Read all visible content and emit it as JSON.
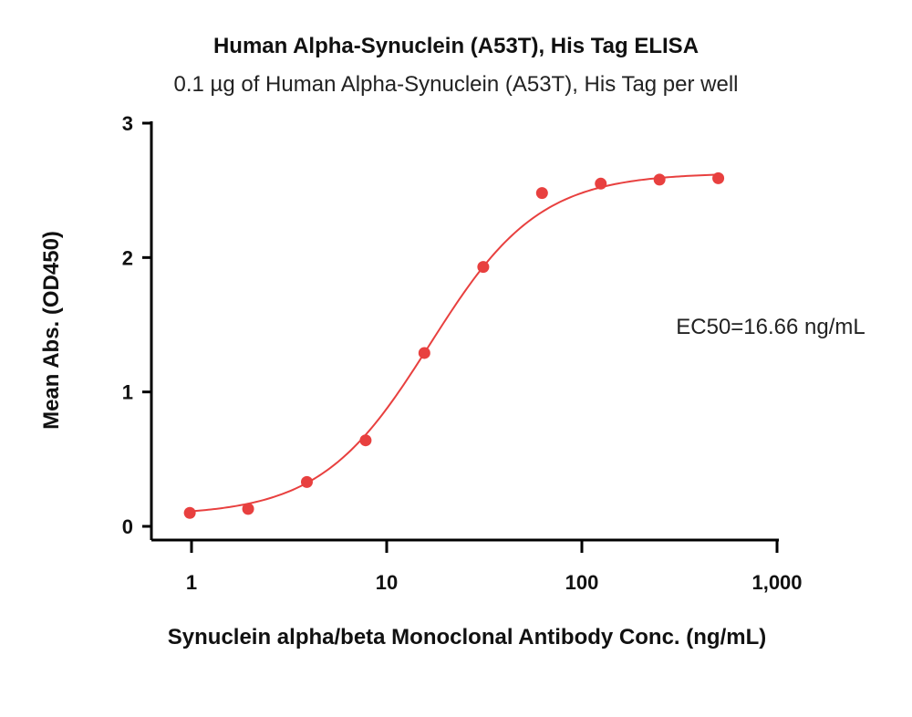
{
  "chart_data": {
    "type": "scatter",
    "title": "Human Alpha-Synuclein (A53T), His Tag ELISA",
    "subtitle": "0.1 µg of Human Alpha-Synuclein (A53T), His Tag per well",
    "xlabel": "Synuclein alpha/beta Monoclonal Antibody Conc. (ng/mL)",
    "ylabel": "Mean Abs. (OD450)",
    "x_scale": "log",
    "xlim": [
      0.8,
      1000
    ],
    "ylim": [
      0,
      3
    ],
    "x_ticks": [
      1,
      10,
      100,
      1000
    ],
    "x_tick_labels": [
      "1",
      "10",
      "100",
      "1,000"
    ],
    "y_ticks": [
      0,
      1,
      2,
      3
    ],
    "y_tick_labels": [
      "0",
      "1",
      "2",
      "3"
    ],
    "grid": false,
    "annotation": "EC50=16.66 ng/mL",
    "ec50": 16.66,
    "color": "#e8403f",
    "points": {
      "x": [
        0.98,
        1.95,
        3.9,
        7.8,
        15.6,
        31.25,
        62.5,
        125,
        250,
        500
      ],
      "y": [
        0.1,
        0.13,
        0.33,
        0.64,
        1.29,
        1.93,
        2.48,
        2.55,
        2.58,
        2.59
      ]
    },
    "fit": {
      "model": "4PL",
      "bottom": 0.08,
      "top": 2.63,
      "ec50": 16.66,
      "hill": 1.55
    }
  }
}
